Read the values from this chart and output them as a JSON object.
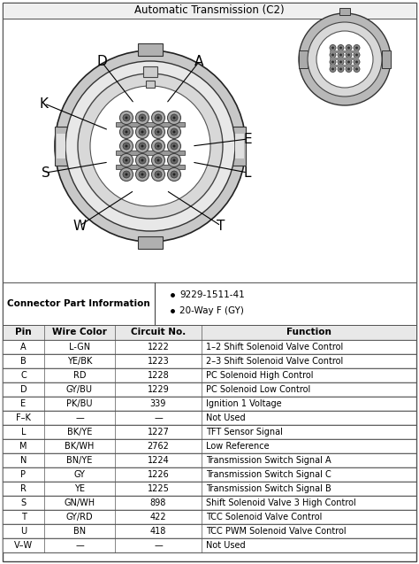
{
  "title": "Automatic Transmission (C2)",
  "connector_info": [
    "9229-1511-41",
    "20-Way F (GY)"
  ],
  "connector_label": "Connector Part Information",
  "table_headers": [
    "Pin",
    "Wire Color",
    "Circuit No.",
    "Function"
  ],
  "table_data": [
    [
      "A",
      "L-GN",
      "1222",
      "1–2 Shift Solenoid Valve Control"
    ],
    [
      "B",
      "YE/BK",
      "1223",
      "2–3 Shift Solenoid Valve Control"
    ],
    [
      "C",
      "RD",
      "1228",
      "PC Solenoid High Control"
    ],
    [
      "D",
      "GY/BU",
      "1229",
      "PC Solenoid Low Control"
    ],
    [
      "E",
      "PK/BU",
      "339",
      "Ignition 1 Voltage"
    ],
    [
      "F–K",
      "—",
      "—",
      "Not Used"
    ],
    [
      "L",
      "BK/YE",
      "1227",
      "TFT Sensor Signal"
    ],
    [
      "M",
      "BK/WH",
      "2762",
      "Low Reference"
    ],
    [
      "N",
      "BN/YE",
      "1224",
      "Transmission Switch Signal A"
    ],
    [
      "P",
      "GY",
      "1226",
      "Transmission Switch Signal C"
    ],
    [
      "R",
      "YE",
      "1225",
      "Transmission Switch Signal B"
    ],
    [
      "S",
      "GN/WH",
      "898",
      "Shift Solenoid Valve 3 High Control"
    ],
    [
      "T",
      "GY/RD",
      "422",
      "TCC Solenoid Valve Control"
    ],
    [
      "U",
      "BN",
      "418",
      "TCC PWM Solenoid Valve Control"
    ],
    [
      "V–W",
      "—",
      "—",
      "Not Used"
    ]
  ],
  "bg_color": "#ffffff"
}
